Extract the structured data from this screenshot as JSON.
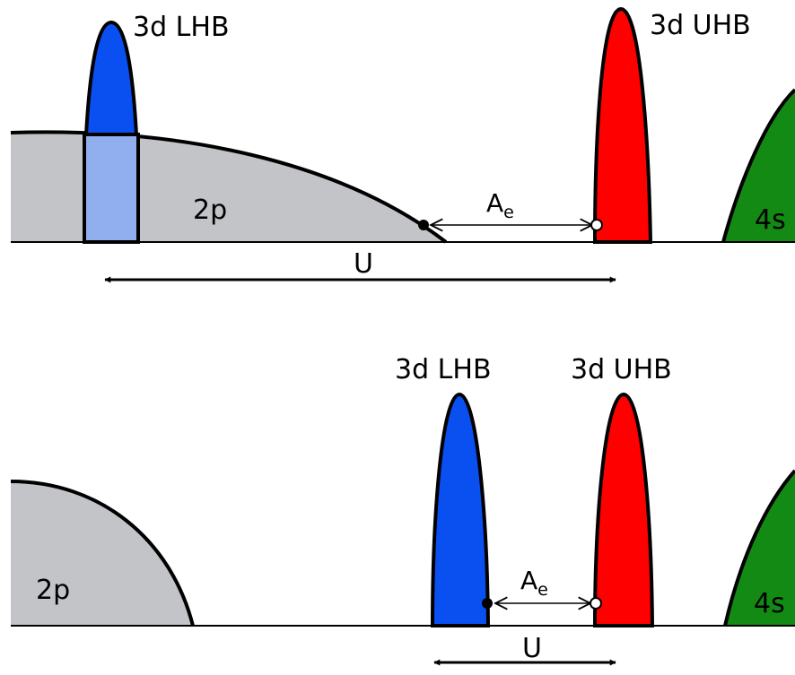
{
  "panels": {
    "top": {
      "lhb_label": "3d LHB",
      "uhb_label": "3d UHB",
      "band_2p_label": "2p",
      "band_4s_label": "4s",
      "ae_label": "A",
      "ae_subscript": "e",
      "u_label": "U"
    },
    "bottom": {
      "lhb_label": "3d LHB",
      "uhb_label": "3d UHB",
      "band_2p_label": "2p",
      "band_4s_label": "4s",
      "ae_label": "A",
      "ae_subscript": "e",
      "u_label": "U"
    }
  },
  "colors": {
    "band_2p": "#c3c4c8",
    "lhb": "#0a50f0",
    "lhb_overlap": "#91aeee",
    "uhb": "#ff0000",
    "band_4s": "#138a13",
    "outline": "#000000"
  }
}
